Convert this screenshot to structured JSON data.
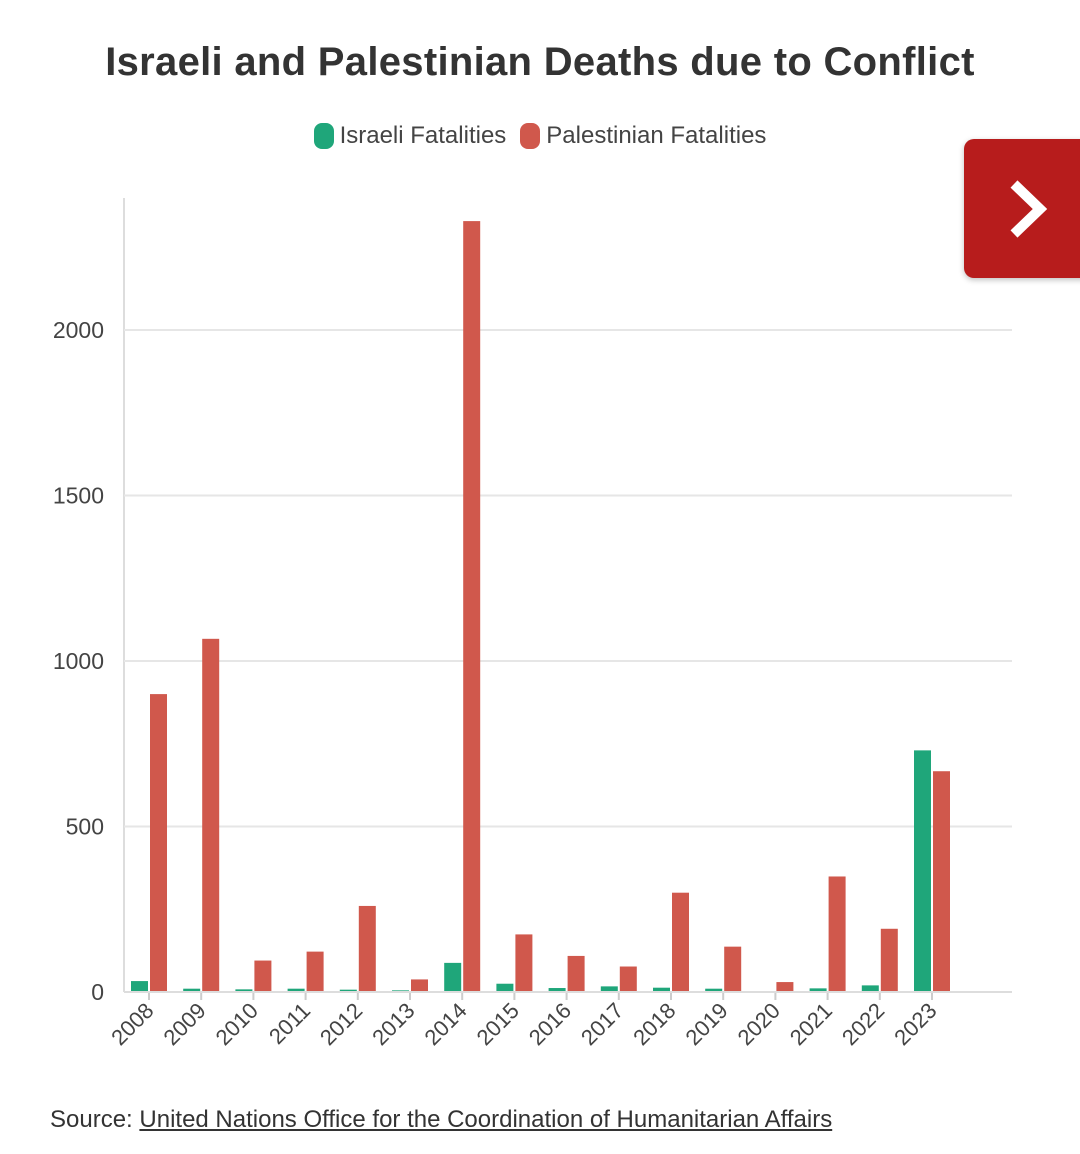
{
  "chart_data": {
    "type": "bar",
    "title": "Israeli and Palestinian Deaths due to Conflict",
    "categories": [
      "2008",
      "2009",
      "2010",
      "2011",
      "2012",
      "2013",
      "2014",
      "2015",
      "2016",
      "2017",
      "2018",
      "2019",
      "2020",
      "2021",
      "2022",
      "2023"
    ],
    "series": [
      {
        "name": "Israeli Fatalities",
        "color": "#1fa67a",
        "values": [
          33,
          10,
          8,
          10,
          7,
          5,
          88,
          25,
          12,
          17,
          13,
          10,
          3,
          11,
          20,
          730
        ]
      },
      {
        "name": "Palestinian Fatalities",
        "color": "#d0584c",
        "values": [
          900,
          1067,
          95,
          122,
          260,
          38,
          2329,
          174,
          109,
          77,
          300,
          137,
          30,
          349,
          191,
          667
        ]
      }
    ],
    "ylim": [
      0,
      2400
    ],
    "yticks": [
      0,
      500,
      1000,
      1500,
      2000
    ],
    "xlabel": "",
    "ylabel": "",
    "grid": true,
    "legend": "top-center"
  },
  "source": {
    "label": "Source:",
    "link_text": "United Nations Office for the Coordination of Humanitarian Affairs"
  },
  "nav": {
    "icon": "chevron-right-icon",
    "color": "#b71c1c"
  }
}
